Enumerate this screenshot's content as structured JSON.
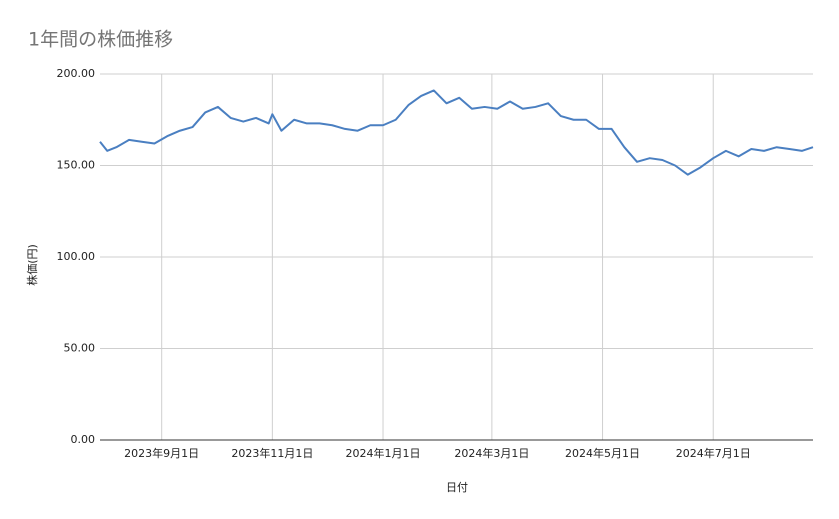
{
  "chart_data": {
    "type": "line",
    "title": "1年間の株価推移",
    "x_label": "日付",
    "y_label": "株価(円)",
    "x": [
      "2023-07-29",
      "2023-08-02",
      "2023-08-07",
      "2023-08-14",
      "2023-08-21",
      "2023-08-28",
      "2023-09-04",
      "2023-09-11",
      "2023-09-18",
      "2023-09-25",
      "2023-10-02",
      "2023-10-09",
      "2023-10-16",
      "2023-10-23",
      "2023-10-30",
      "2023-11-01",
      "2023-11-06",
      "2023-11-13",
      "2023-11-20",
      "2023-11-27",
      "2023-12-04",
      "2023-12-11",
      "2023-12-18",
      "2023-12-25",
      "2024-01-01",
      "2024-01-08",
      "2024-01-15",
      "2024-01-22",
      "2024-01-29",
      "2024-02-05",
      "2024-02-12",
      "2024-02-19",
      "2024-02-26",
      "2024-03-04",
      "2024-03-11",
      "2024-03-18",
      "2024-03-25",
      "2024-04-01",
      "2024-04-08",
      "2024-04-15",
      "2024-04-22",
      "2024-04-29",
      "2024-05-06",
      "2024-05-13",
      "2024-05-20",
      "2024-05-27",
      "2024-06-03",
      "2024-06-10",
      "2024-06-17",
      "2024-06-24",
      "2024-07-01",
      "2024-07-08",
      "2024-07-15",
      "2024-07-22",
      "2024-07-29",
      "2024-08-05",
      "2024-08-12",
      "2024-08-19",
      "2024-08-25"
    ],
    "series": [
      {
        "name": "株価",
        "color": "#4a7fc1",
        "values": [
          163,
          158,
          160,
          164,
          163,
          162,
          166,
          169,
          171,
          179,
          182,
          176,
          174,
          176,
          173,
          178,
          169,
          175,
          173,
          173,
          172,
          170,
          169,
          172,
          172,
          175,
          183,
          188,
          191,
          184,
          187,
          181,
          182,
          181,
          185,
          181,
          182,
          184,
          177,
          175,
          175,
          170,
          170,
          160,
          152,
          154,
          153,
          150,
          145,
          149,
          154,
          158,
          155,
          159,
          158,
          160,
          159,
          158,
          160
        ]
      }
    ],
    "xlim": [
      "2023-07-29",
      "2024-08-25"
    ],
    "xticks": [
      {
        "value": "2023-09-01",
        "label": "2023年9月1日"
      },
      {
        "value": "2023-11-01",
        "label": "2023年11月1日"
      },
      {
        "value": "2024-01-01",
        "label": "2024年1月1日"
      },
      {
        "value": "2024-03-01",
        "label": "2024年3月1日"
      },
      {
        "value": "2024-05-01",
        "label": "2024年5月1日"
      },
      {
        "value": "2024-07-01",
        "label": "2024年7月1日"
      }
    ],
    "ylim": [
      0,
      200
    ],
    "yticks": [
      {
        "value": 0,
        "label": "0.00"
      },
      {
        "value": 50,
        "label": "50.00"
      },
      {
        "value": 100,
        "label": "100.00"
      },
      {
        "value": 150,
        "label": "150.00"
      },
      {
        "value": 200,
        "label": "200.00"
      }
    ],
    "grid": true
  }
}
